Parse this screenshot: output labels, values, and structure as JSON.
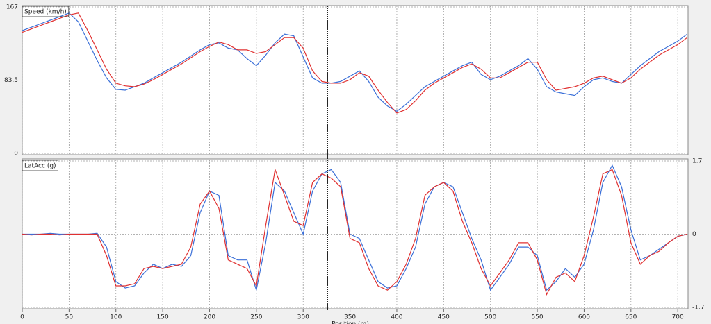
{
  "chart_data": [
    {
      "type": "line",
      "title": "Speed (km/h)",
      "ylabel_side": "left",
      "x": [
        0,
        10,
        20,
        30,
        40,
        50,
        60,
        70,
        80,
        90,
        100,
        110,
        120,
        130,
        140,
        150,
        160,
        170,
        180,
        190,
        200,
        210,
        220,
        230,
        240,
        250,
        260,
        270,
        280,
        290,
        300,
        310,
        320,
        330,
        340,
        350,
        360,
        370,
        380,
        390,
        400,
        410,
        420,
        430,
        440,
        450,
        460,
        470,
        480,
        490,
        500,
        510,
        520,
        530,
        540,
        550,
        560,
        570,
        580,
        590,
        600,
        610,
        620,
        630,
        640,
        650,
        660,
        670,
        680,
        690,
        700,
        710
      ],
      "series": [
        {
          "color": "#3a6fd8",
          "values": [
            140,
            144,
            148,
            152,
            156,
            160,
            150,
            128,
            106,
            86,
            73,
            72,
            76,
            80,
            86,
            92,
            98,
            104,
            111,
            118,
            124,
            126,
            120,
            118,
            108,
            100,
            112,
            126,
            136,
            134,
            110,
            86,
            80,
            80,
            82,
            88,
            94,
            82,
            64,
            54,
            48,
            56,
            66,
            76,
            82,
            88,
            94,
            100,
            104,
            90,
            84,
            88,
            94,
            100,
            108,
            96,
            76,
            70,
            68,
            66,
            76,
            84,
            86,
            82,
            80,
            90,
            100,
            108,
            116,
            122,
            128,
            136
          ]
        },
        {
          "color": "#e03030",
          "values": [
            138,
            142,
            146,
            150,
            154,
            158,
            160,
            140,
            118,
            96,
            80,
            77,
            76,
            79,
            84,
            90,
            96,
            102,
            109,
            116,
            122,
            127,
            124,
            118,
            118,
            114,
            116,
            124,
            132,
            132,
            120,
            94,
            82,
            80,
            80,
            84,
            92,
            88,
            72,
            58,
            46,
            50,
            60,
            72,
            80,
            86,
            92,
            98,
            102,
            96,
            86,
            86,
            92,
            98,
            104,
            104,
            84,
            72,
            74,
            76,
            80,
            86,
            88,
            84,
            80,
            86,
            96,
            104,
            112,
            118,
            124,
            132
          ]
        }
      ],
      "xlim": [
        0,
        711
      ],
      "ylim": [
        0,
        167
      ],
      "yticks": [
        0,
        83.5,
        167
      ],
      "grid": true
    },
    {
      "type": "line",
      "title": "LatAcc (g)",
      "ylabel_side": "right",
      "xlabel": "Position (m)",
      "x": [
        0,
        10,
        20,
        30,
        40,
        50,
        60,
        70,
        80,
        90,
        100,
        110,
        120,
        130,
        140,
        150,
        160,
        170,
        180,
        190,
        200,
        210,
        220,
        230,
        240,
        250,
        260,
        270,
        280,
        290,
        300,
        310,
        320,
        330,
        340,
        350,
        360,
        370,
        380,
        390,
        400,
        410,
        420,
        430,
        440,
        450,
        460,
        470,
        480,
        490,
        500,
        510,
        520,
        530,
        540,
        550,
        560,
        570,
        580,
        590,
        600,
        610,
        620,
        630,
        640,
        650,
        660,
        670,
        680,
        690,
        700,
        710
      ],
      "series": [
        {
          "color": "#3a6fd8",
          "values": [
            0,
            0,
            0,
            0.02,
            0,
            0,
            0,
            0,
            0.02,
            -0.3,
            -1.1,
            -1.25,
            -1.2,
            -0.9,
            -0.7,
            -0.8,
            -0.7,
            -0.75,
            -0.5,
            0.5,
            1.0,
            0.9,
            -0.5,
            -0.6,
            -0.6,
            -1.3,
            -0.2,
            1.2,
            1.0,
            0.5,
            0,
            1.0,
            1.4,
            1.5,
            1.2,
            0,
            -0.1,
            -0.6,
            -1.1,
            -1.25,
            -1.2,
            -0.8,
            -0.3,
            0.7,
            1.1,
            1.2,
            1.1,
            0.5,
            -0.1,
            -0.6,
            -1.3,
            -1.0,
            -0.7,
            -0.3,
            -0.3,
            -0.5,
            -1.3,
            -1.1,
            -0.8,
            -1.0,
            -0.7,
            0.1,
            1.2,
            1.6,
            1.1,
            0.1,
            -0.6,
            -0.5,
            -0.35,
            -0.2,
            -0.05,
            0
          ]
        },
        {
          "color": "#e03030",
          "values": [
            0,
            -0.02,
            0,
            0,
            -0.02,
            0,
            0,
            0,
            0,
            -0.5,
            -1.2,
            -1.2,
            -1.15,
            -0.8,
            -0.75,
            -0.8,
            -0.75,
            -0.7,
            -0.3,
            0.7,
            1.0,
            0.6,
            -0.6,
            -0.7,
            -0.8,
            -1.2,
            0.2,
            1.5,
            0.9,
            0.3,
            0.2,
            1.2,
            1.4,
            1.3,
            1.1,
            -0.1,
            -0.2,
            -0.8,
            -1.2,
            -1.3,
            -1.1,
            -0.7,
            -0.1,
            0.9,
            1.1,
            1.2,
            1.0,
            0.3,
            -0.2,
            -0.8,
            -1.2,
            -0.9,
            -0.6,
            -0.2,
            -0.2,
            -0.6,
            -1.4,
            -1.0,
            -0.9,
            -1.1,
            -0.5,
            0.4,
            1.4,
            1.5,
            0.9,
            -0.2,
            -0.7,
            -0.5,
            -0.4,
            -0.2,
            -0.05,
            0
          ]
        }
      ],
      "xlim": [
        0,
        711
      ],
      "ylim": [
        -1.7,
        1.7
      ],
      "yticks": [
        -1.7,
        0,
        1.7
      ],
      "xticks": [
        0,
        50,
        100,
        150,
        200,
        250,
        300,
        350,
        400,
        450,
        500,
        550,
        600,
        650,
        700
      ],
      "grid": true,
      "cursor": 326
    }
  ]
}
